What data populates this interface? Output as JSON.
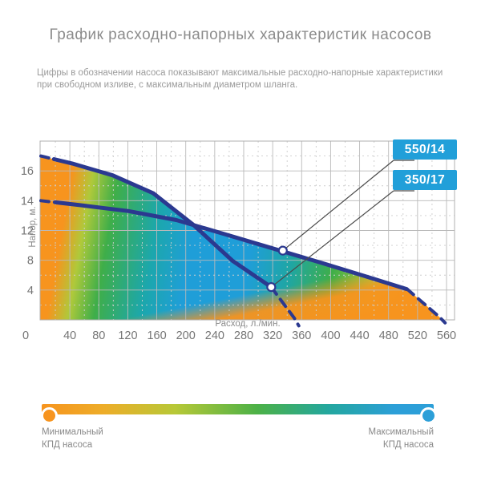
{
  "title": "График расходно-напорных характеристик насосов",
  "subtitle": {
    "line1": "Цифры в обозначении насоса показывают максимальные расходно-напорные характеристики",
    "line2": "при свободном изливе, с максимальным диаметром шланга."
  },
  "chart_data": {
    "type": "line",
    "xlabel": "Расход, л./мин.",
    "ylabel": "Напор, м.",
    "x_ticks": [
      0,
      40,
      80,
      120,
      160,
      200,
      240,
      280,
      320,
      360,
      400,
      440,
      480,
      520,
      560
    ],
    "x_minor_step": 20,
    "xlim": [
      0,
      575
    ],
    "y_ticks_labeled": [
      16,
      14,
      12,
      8,
      4
    ],
    "y_axis_segments": [
      0,
      4,
      8,
      12,
      14,
      16,
      18
    ],
    "y_gridlines_dashed": [
      2,
      6,
      10,
      13,
      15,
      17
    ],
    "series": [
      {
        "name": "550/14",
        "max_flow": 550,
        "max_head": 14,
        "points": [
          [
            0,
            14
          ],
          [
            54,
            13.7
          ],
          [
            121,
            13.3
          ],
          [
            187,
            12.7
          ],
          [
            254,
            11.5
          ],
          [
            320,
            9.6
          ],
          [
            386,
            7.7
          ],
          [
            453,
            5.7
          ],
          [
            506,
            4.1
          ],
          [
            550,
            0.4
          ],
          [
            558,
            -0.4
          ]
        ],
        "solid_range": [
          20,
          505
        ],
        "marker": [
          334,
          9.3
        ]
      },
      {
        "name": "350/17",
        "max_flow": 350,
        "max_head": 17,
        "points": [
          [
            0,
            17
          ],
          [
            43,
            16.5
          ],
          [
            99,
            15.7
          ],
          [
            155,
            14.5
          ],
          [
            210,
            12.4
          ],
          [
            265,
            7.9
          ],
          [
            318,
            4.4
          ],
          [
            350,
            0.2
          ],
          [
            356,
            -0.8
          ]
        ],
        "solid_range": [
          18,
          318
        ],
        "marker": [
          318,
          4.4
        ]
      }
    ],
    "callouts": [
      {
        "label": "550/14",
        "series": 0
      },
      {
        "label": "350/17",
        "series": 1
      }
    ],
    "colors": {
      "curve": "#2B3990",
      "badge": "#219FD9",
      "callout_line": "#4A4A4A",
      "marker_fill": "#FFFFFF",
      "grid_solid": "#B9B9B9",
      "grid_dashed": "#CDCDCD",
      "border": "#B0B0B0",
      "tick_text": "#757575",
      "axis_title_text": "#8A8A8A",
      "orange": "#F7941E",
      "green": "#3FAE49",
      "teal": "#1CA7AC",
      "blue": "#1F9ED8",
      "fill_bands": [
        [
          "0",
          "#F7941E"
        ],
        [
          "0.07",
          "#F7941E"
        ],
        [
          "0.12",
          "#AFC93B"
        ],
        [
          "0.18",
          "#3FAE49"
        ],
        [
          "0.29",
          "#1CA7AC"
        ],
        [
          "0.38",
          "#1F9ED8"
        ],
        [
          "0.52",
          "#1F9ED8"
        ],
        [
          "0.62",
          "#1FA6A4"
        ],
        [
          "0.72",
          "#3FAE49"
        ],
        [
          "0.82",
          "#A9C93C"
        ],
        [
          "0.92",
          "#F7941E"
        ],
        [
          "1",
          "#F7941E"
        ]
      ]
    }
  },
  "legend": {
    "min_line1": "Минимальный",
    "min_line2": "КПД насоса",
    "max_line1": "Максимальный",
    "max_line2": "КПД насоса",
    "min_color": "#F7941E",
    "max_color": "#2C9FD8",
    "gradient": [
      "#F7941E 0%",
      "#EDAD29 16%",
      "#B7C837 34%",
      "#4CB147 55%",
      "#23A79E 73%",
      "#2C9FD8 90%",
      "#2C9FD8 100%"
    ]
  }
}
